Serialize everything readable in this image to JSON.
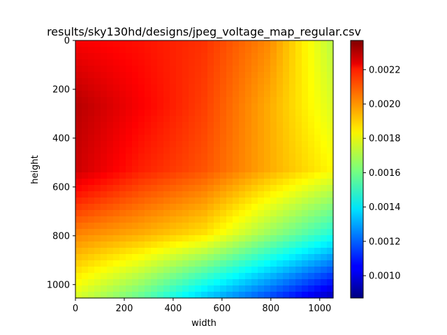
{
  "chart_data": {
    "type": "heatmap",
    "title": "results/sky130hd/designs/jpeg_voltage_map_regular.csv",
    "xlabel": "width",
    "ylabel": "height",
    "xlim": [
      0,
      1055
    ],
    "ylim": [
      1055,
      0
    ],
    "y_inverted": true,
    "x_ticks": [
      0,
      200,
      400,
      600,
      800,
      1000
    ],
    "y_ticks": [
      0,
      200,
      400,
      600,
      800,
      1000
    ],
    "colormap": "jet",
    "colorbar": {
      "vmin": 0.00087,
      "vmax": 0.00237,
      "ticks": [
        "0.0010",
        "0.0012",
        "0.0014",
        "0.0016",
        "0.0018",
        "0.0020",
        "0.0022"
      ]
    },
    "grid": false,
    "x": [
      0,
      264,
      528,
      792,
      1055
    ],
    "y": [
      0,
      264,
      528,
      792,
      1055
    ],
    "z": [
      [
        0.00219,
        0.00216,
        0.00211,
        0.00198,
        0.0017
      ],
      [
        0.00229,
        0.00219,
        0.00209,
        0.00193,
        0.00175
      ],
      [
        0.00226,
        0.00214,
        0.00206,
        0.00193,
        0.00181
      ],
      [
        0.00199,
        0.00193,
        0.00185,
        0.00166,
        0.00148
      ],
      [
        0.00175,
        0.00158,
        0.00135,
        0.00116,
        0.00095
      ]
    ]
  }
}
